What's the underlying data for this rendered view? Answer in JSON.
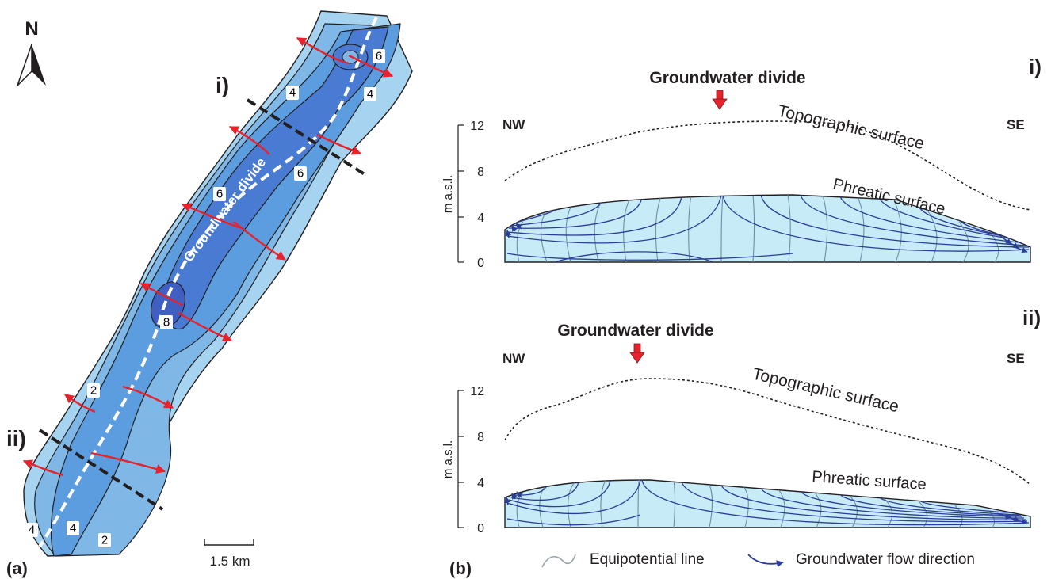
{
  "map": {
    "north_label": "N",
    "section_i_label": "i)",
    "section_ii_label": "ii)",
    "divide_label": "Groundwater divide",
    "contour_labels": [
      "6",
      "4",
      "4",
      "6",
      "6",
      "8",
      "2",
      "4",
      "4",
      "2"
    ],
    "scale_label": "1.5 km",
    "panel_label": "(a)"
  },
  "sections": [
    {
      "marker": "i)",
      "divide_label": "Groundwater divide",
      "left_dir": "NW",
      "right_dir": "SE",
      "axis_label": "m a.s.l.",
      "ticks": [
        "12",
        "8",
        "4",
        "0"
      ],
      "topographic_label": "Topographic surface",
      "phreatic_label": "Phreatic surface"
    },
    {
      "marker": "ii)",
      "divide_label": "Groundwater divide",
      "left_dir": "NW",
      "right_dir": "SE",
      "axis_label": "m a.s.l.",
      "ticks": [
        "12",
        "8",
        "4",
        "0"
      ],
      "topographic_label": "Topographic surface",
      "phreatic_label": "Phreatic surface"
    }
  ],
  "legend": {
    "equipotential_label": "Equipotential line",
    "flow_label": "Groundwater flow direction",
    "panel_label": "(b)"
  },
  "colors": {
    "zone_lightest": "#a6d3ef",
    "zone_light": "#7fb8e6",
    "zone_mid": "#5b9ddf",
    "zone_dark": "#4a7bd2",
    "zone_darkest": "#3f5fc3",
    "aquifer_fill": "#c8ebf8",
    "flow_line": "#2b3d98",
    "equipotential": "#6b8fa5",
    "flow_arrow": "#e8222c",
    "divide_dash": "#ffffff"
  }
}
